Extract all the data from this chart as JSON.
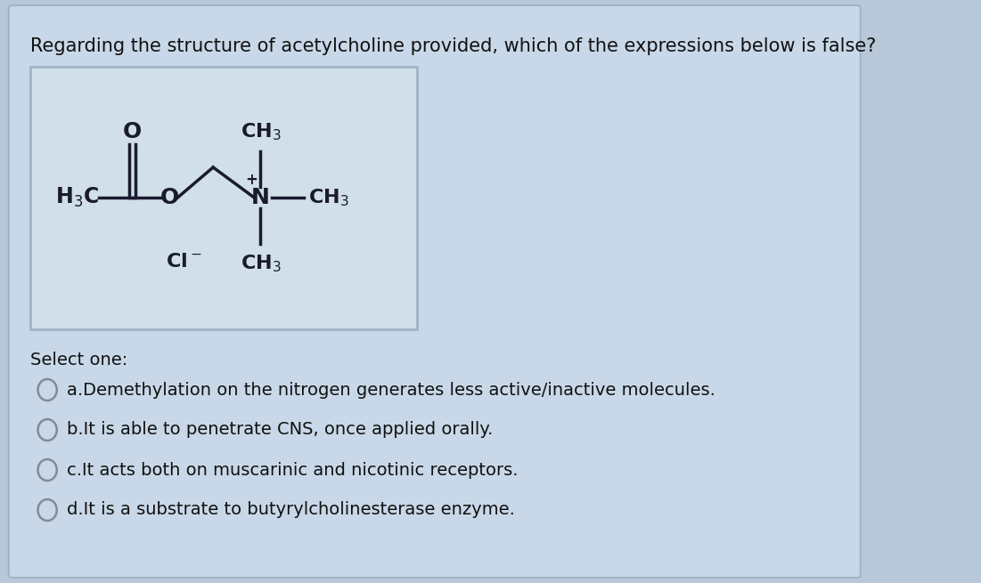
{
  "page_bg": "#b8c8d8",
  "card_bg": "#c8d8e8",
  "card_edge": "#a0b4c8",
  "mol_box_bg": "#d0dfe8",
  "mol_box_edge": "#a0b4c8",
  "right_panel_bg": "#e8eef4",
  "title_text": "Regarding the structure of acetylcholine provided, which of the expressions below is false?",
  "title_fontsize": 15,
  "title_color": "#111111",
  "select_text": "Select one:",
  "select_fontsize": 14,
  "options": [
    "a.Demethylation on the nitrogen generates less active/inactive molecules.",
    "b.It is able to penetrate CNS, once applied orally.",
    "c.It acts both on muscarinic and nicotinic receptors.",
    "d.It is a substrate to butyrylcholinesterase enzyme."
  ],
  "option_fontsize": 14,
  "option_color": "#111111",
  "circle_edge_color": "#888899",
  "mol_color": "#1a1a2e",
  "mol_fontsize": 16
}
